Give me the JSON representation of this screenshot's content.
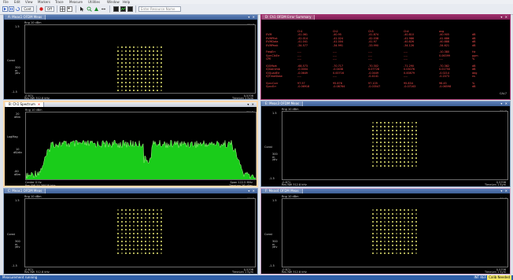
{
  "app": {
    "menu": [
      "File",
      "Edit",
      "View",
      "Markers",
      "Trace",
      "Measure",
      "Utilities",
      "Window",
      "Help"
    ]
  },
  "toolbar": {
    "control_label": "Cont",
    "input_label": "Off",
    "search_placeholder": "Enter Resource Name"
  },
  "colors": {
    "constellation": "#f2f279",
    "spectrum": "#1ef01e",
    "summary": "#ff5050",
    "pane_border_selected": "#fbd7a8"
  },
  "panes": {
    "a": {
      "title": "A: Meas1 OFDM Meas",
      "ref": "Rng 10 dBm",
      "scale": "CAL7",
      "y_top": "1.5",
      "y_label": "Const",
      "y_mid_label": "300\nm\n/div",
      "y_bottom": "-1.5",
      "x_left": "-0.871",
      "x_right": "0.5708",
      "foot_left": "Res BW 312.8 kHz",
      "foot_right": "TimeLen 1 Sym"
    },
    "b": {
      "title": "B: Ch1 Spectrum",
      "ref": "Rng 10 dBm",
      "scale": "CAL7",
      "y_top": "20",
      "y_top_unit": "dBm",
      "y_label": "LogMag",
      "y_mid": "10",
      "y_mid_unit": "dB/div",
      "y_bottom": "-80",
      "y_bottom_unit": "dBm",
      "foot_left_1": "Center 0 Hz",
      "foot_left_2": "Res BW 54.38838 kHz",
      "foot_right_1": "Span 122.5 MHz",
      "foot_right_2": "TimeLen 26 uSec"
    },
    "c": {
      "title": "C: Meas1 OFDM Meas",
      "ref": "Rng 10 dBm",
      "scale": "CAL7",
      "y_top": "1.5",
      "y_label": "Const",
      "y_mid_label": "300\nm\n/div",
      "y_bottom": "-1.5",
      "x_left": "-0.871",
      "x_right": "0.5708",
      "foot_left": "Res BW 312.8 kHz",
      "foot_right": "TimeLen 1 Sym"
    },
    "d": {
      "title": "D: Ch1 OFDM Error Summary",
      "scale": "CAL7",
      "headers": [
        "",
        "Ch1",
        "Ch2",
        "Ch3",
        "Ch4",
        "avg",
        ""
      ],
      "rows": [
        [
          "EVM",
          "-41.061",
          "-40.95",
          "-41.874",
          "-40.810",
          "-40.905",
          "dB"
        ],
        [
          "EVMPilot",
          "-42.014",
          "-41.024",
          "-42.038",
          "-41.986",
          "-41.686",
          "dB"
        ],
        [
          "EVMData",
          "-41.041",
          "-41.004",
          "-41.97",
          "-40.826",
          "-40.888",
          "dB"
        ],
        [
          "EVMPeak",
          "-34.577",
          "-34.991",
          "-33.990",
          "-34.126",
          "-34.621",
          "dB"
        ],
        [
          "",
          "",
          "",
          "",
          "",
          "",
          ""
        ],
        [
          "FreqErr",
          "----",
          "----",
          "----",
          "----",
          "-10.380",
          "Hz"
        ],
        [
          "SymClkErr",
          "----",
          "----",
          "----",
          "----",
          "0.06399",
          "ppm"
        ],
        [
          "CPE",
          "----",
          "----",
          "----",
          "----",
          "----",
          "%"
        ],
        [
          "",
          "",
          "",
          "",
          "",
          "",
          ""
        ],
        [
          "IQOffset",
          "-68.573",
          "-70.717",
          "-70.302",
          "-71.290",
          "-70.382",
          "dB"
        ],
        [
          "IQGainImb",
          "-0.0004",
          "-0.0438",
          "0.07728",
          "0.03076",
          "0.01750",
          "dB"
        ],
        [
          "IQQuadErr",
          "-0.0649",
          "0.00716",
          "-0.0449",
          "0.00879",
          "-0.0214",
          "deg"
        ],
        [
          "IQTimeSkew",
          "----",
          "----",
          "-0.4141",
          "----",
          "-0.2073",
          "ns"
        ],
        [
          "",
          "",
          "",
          "",
          "",
          "",
          ""
        ],
        [
          "SyncCorr",
          "97.57",
          "95.676",
          "97.105",
          "95.834",
          "96.45",
          "%"
        ],
        [
          "SyncErr",
          "-0.06918",
          "-0.08764",
          "-0.03547",
          "-0.07163",
          "-0.06598",
          "dB"
        ]
      ]
    },
    "e": {
      "title": "E: Meas3 OFDM Meas",
      "ref": "Rng 10 dBm",
      "scale": "CAL7",
      "y_top": "1.5",
      "y_label": "Const",
      "y_mid_label": "300\nm\n/div",
      "y_bottom": "-1.5",
      "x_left": "-0.871",
      "x_right": "0.5708",
      "foot_left": "Res BW 312.8 kHz",
      "foot_right": "TimeLen 1 Sym"
    },
    "f": {
      "title": "F: Meas4 OFDM Meas",
      "ref": "Rng 10 dBm",
      "scale": "CAL7",
      "y_top": "1.5",
      "y_label": "Const",
      "y_mid_label": "300\nm\n/div",
      "y_bottom": "-1.5",
      "x_left": "-0.871",
      "x_right": "0.5708",
      "foot_left": "Res BW 312.8 kHz",
      "foot_right": "TimeLen 1 Sym"
    }
  },
  "status": {
    "left": "Measurement running",
    "right_1": "INT REF",
    "right_2": "Calib Needed"
  }
}
